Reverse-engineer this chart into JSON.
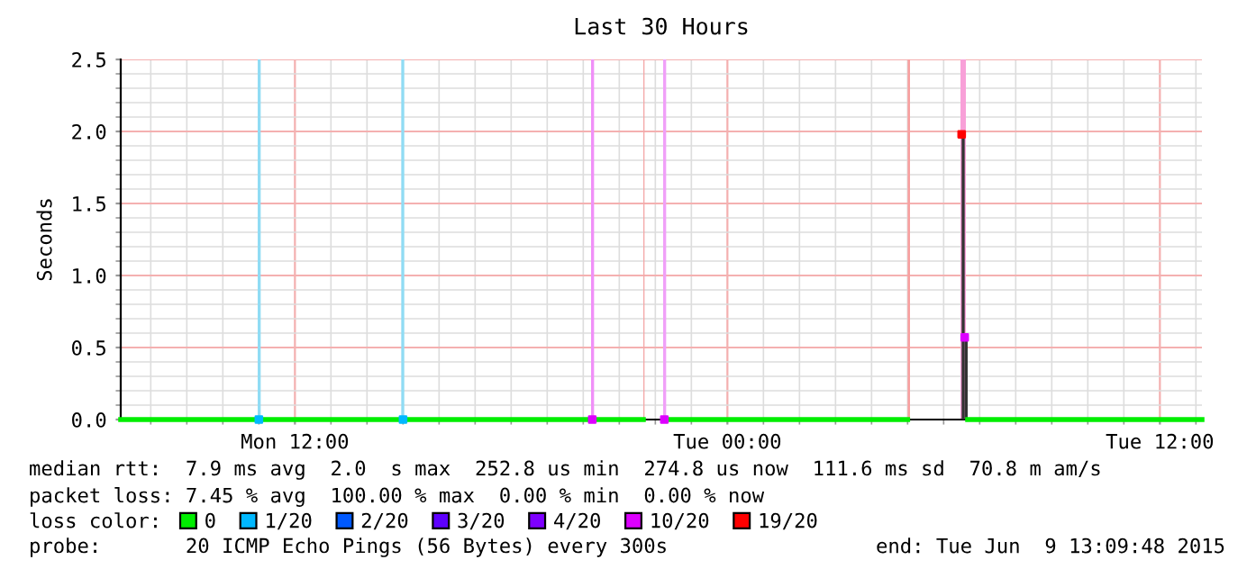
{
  "chart_data": {
    "type": "line",
    "title": "Last 30 Hours",
    "ylabel": "Seconds",
    "xlim": [
      "2015-06-08T07:10",
      "2015-06-09T13:10"
    ],
    "ylim": [
      0,
      2.5
    ],
    "xticks": [
      {
        "value": "2015-06-08T12:00",
        "label": "Mon 12:00"
      },
      {
        "value": "2015-06-09T00:00",
        "label": "Tue 00:00"
      },
      {
        "value": "2015-06-09T12:00",
        "label": "Tue 12:00"
      }
    ],
    "yticks": [
      {
        "value": 0,
        "label": "0.0"
      },
      {
        "value": 0.5,
        "label": "0.5"
      },
      {
        "value": 1.0,
        "label": "1.0"
      },
      {
        "value": 1.5,
        "label": "1.5"
      },
      {
        "value": 2.0,
        "label": "2.0"
      },
      {
        "value": 2.5,
        "label": "2.5"
      }
    ],
    "grid": true,
    "legend": "bottom",
    "legend_title": "loss color:",
    "series": [
      {
        "type": "bar",
        "color": "#333333",
        "x": [
          "2015-06-09T06:30",
          "2015-06-09T06:35"
        ],
        "values": [
          1.98,
          0.57
        ]
      },
      {
        "name": "0",
        "color": "#00ee00",
        "x": [
          "2015-06-08T07:10",
          "2015-06-08T21:40",
          "2015-06-08T21:41",
          "2015-06-08T22:15",
          "2015-06-09T05:00",
          "2015-06-09T05:01",
          "2015-06-09T06:40",
          "2015-06-09T13:10"
        ],
        "values": [
          0,
          0,
          null,
          0,
          0,
          null,
          0,
          0
        ]
      },
      {
        "name": "1/20",
        "type": "scatter",
        "color": "#00b8ff",
        "x": [
          "2015-06-08T11:00",
          "2015-06-08T15:00"
        ],
        "values": [
          0,
          0
        ]
      },
      {
        "name": "2/20",
        "type": "scatter",
        "color": "#0059ff"
      },
      {
        "name": "3/20",
        "type": "scatter",
        "color": "#5e00ff"
      },
      {
        "name": "4/20",
        "type": "scatter",
        "color": "#7e00ff"
      },
      {
        "name": "10/20",
        "type": "scatter",
        "color": "#dd00ff",
        "x": [
          "2015-06-08T20:15",
          "2015-06-08T22:15",
          "2015-06-09T06:35"
        ],
        "values": [
          0,
          0,
          0.57
        ]
      },
      {
        "name": "19/20",
        "type": "scatter",
        "color": "#ff0000",
        "x": [
          "2015-06-09T06:30"
        ],
        "values": [
          1.98
        ]
      }
    ],
    "bands": [
      {
        "axis": "x",
        "from": "2015-06-08T10:58",
        "to": "2015-06-08T11:03",
        "color": "#90dcf4"
      },
      {
        "axis": "x",
        "from": "2015-06-08T14:57",
        "to": "2015-06-08T15:02",
        "color": "#90dcf4"
      },
      {
        "axis": "x",
        "from": "2015-06-08T20:13",
        "to": "2015-06-08T20:18",
        "color": "#f090f8"
      },
      {
        "axis": "x",
        "from": "2015-06-08T21:40",
        "to": "2015-06-08T21:42",
        "color": "#f4a8a8"
      },
      {
        "axis": "x",
        "from": "2015-06-08T22:13",
        "to": "2015-06-08T22:18",
        "color": "#f0a0f8"
      },
      {
        "axis": "x",
        "from": "2015-06-09T05:00",
        "to": "2015-06-09T05:04",
        "color": "#f8a0a0"
      },
      {
        "axis": "x",
        "from": "2015-06-09T06:28",
        "to": "2015-06-09T06:37",
        "color": "#f8a0d8"
      }
    ],
    "annotations": [
      "median rtt:  7.9 ms avg  2.0  s max  252.8 us min  274.8 us now  111.6 ms sd  70.8 m am/s",
      "packet loss: 7.45 % avg  100.00 % max  0.00 % min  0.00 % now",
      "probe:       20 ICMP Echo Pings (56 Bytes) every 300s",
      "end: Tue Jun  9 13:09:48 2015"
    ]
  }
}
